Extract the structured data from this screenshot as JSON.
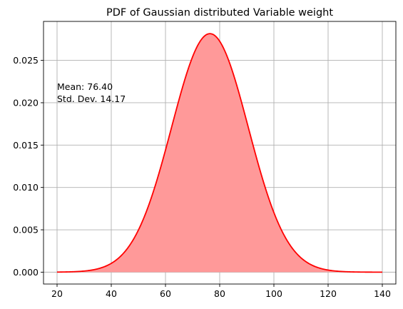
{
  "chart_data": {
    "type": "area",
    "title": "PDF of Gaussian distributed Variable weight",
    "xlabel": "",
    "ylabel": "",
    "xlim": [
      15,
      145
    ],
    "ylim": [
      -0.0014,
      0.0296
    ],
    "x_ticks": [
      20,
      40,
      60,
      80,
      100,
      120,
      140
    ],
    "x_tick_labels": [
      "20",
      "40",
      "60",
      "80",
      "100",
      "120",
      "140"
    ],
    "y_ticks": [
      0.0,
      0.005,
      0.01,
      0.015,
      0.02,
      0.025
    ],
    "y_tick_labels": [
      "0.000",
      "0.005",
      "0.010",
      "0.015",
      "0.020",
      "0.025"
    ],
    "grid": true,
    "distribution": {
      "mean": 76.4,
      "std": 14.17,
      "x_min": 20,
      "x_max": 140
    },
    "annotations": [
      {
        "text": "Mean: 76.40",
        "x": 20,
        "y": 0.0215
      },
      {
        "text": "Std. Dev. 14.17",
        "x": 20,
        "y": 0.0201
      }
    ],
    "line_color": "#ff0000",
    "fill_color": "#ff9999"
  }
}
